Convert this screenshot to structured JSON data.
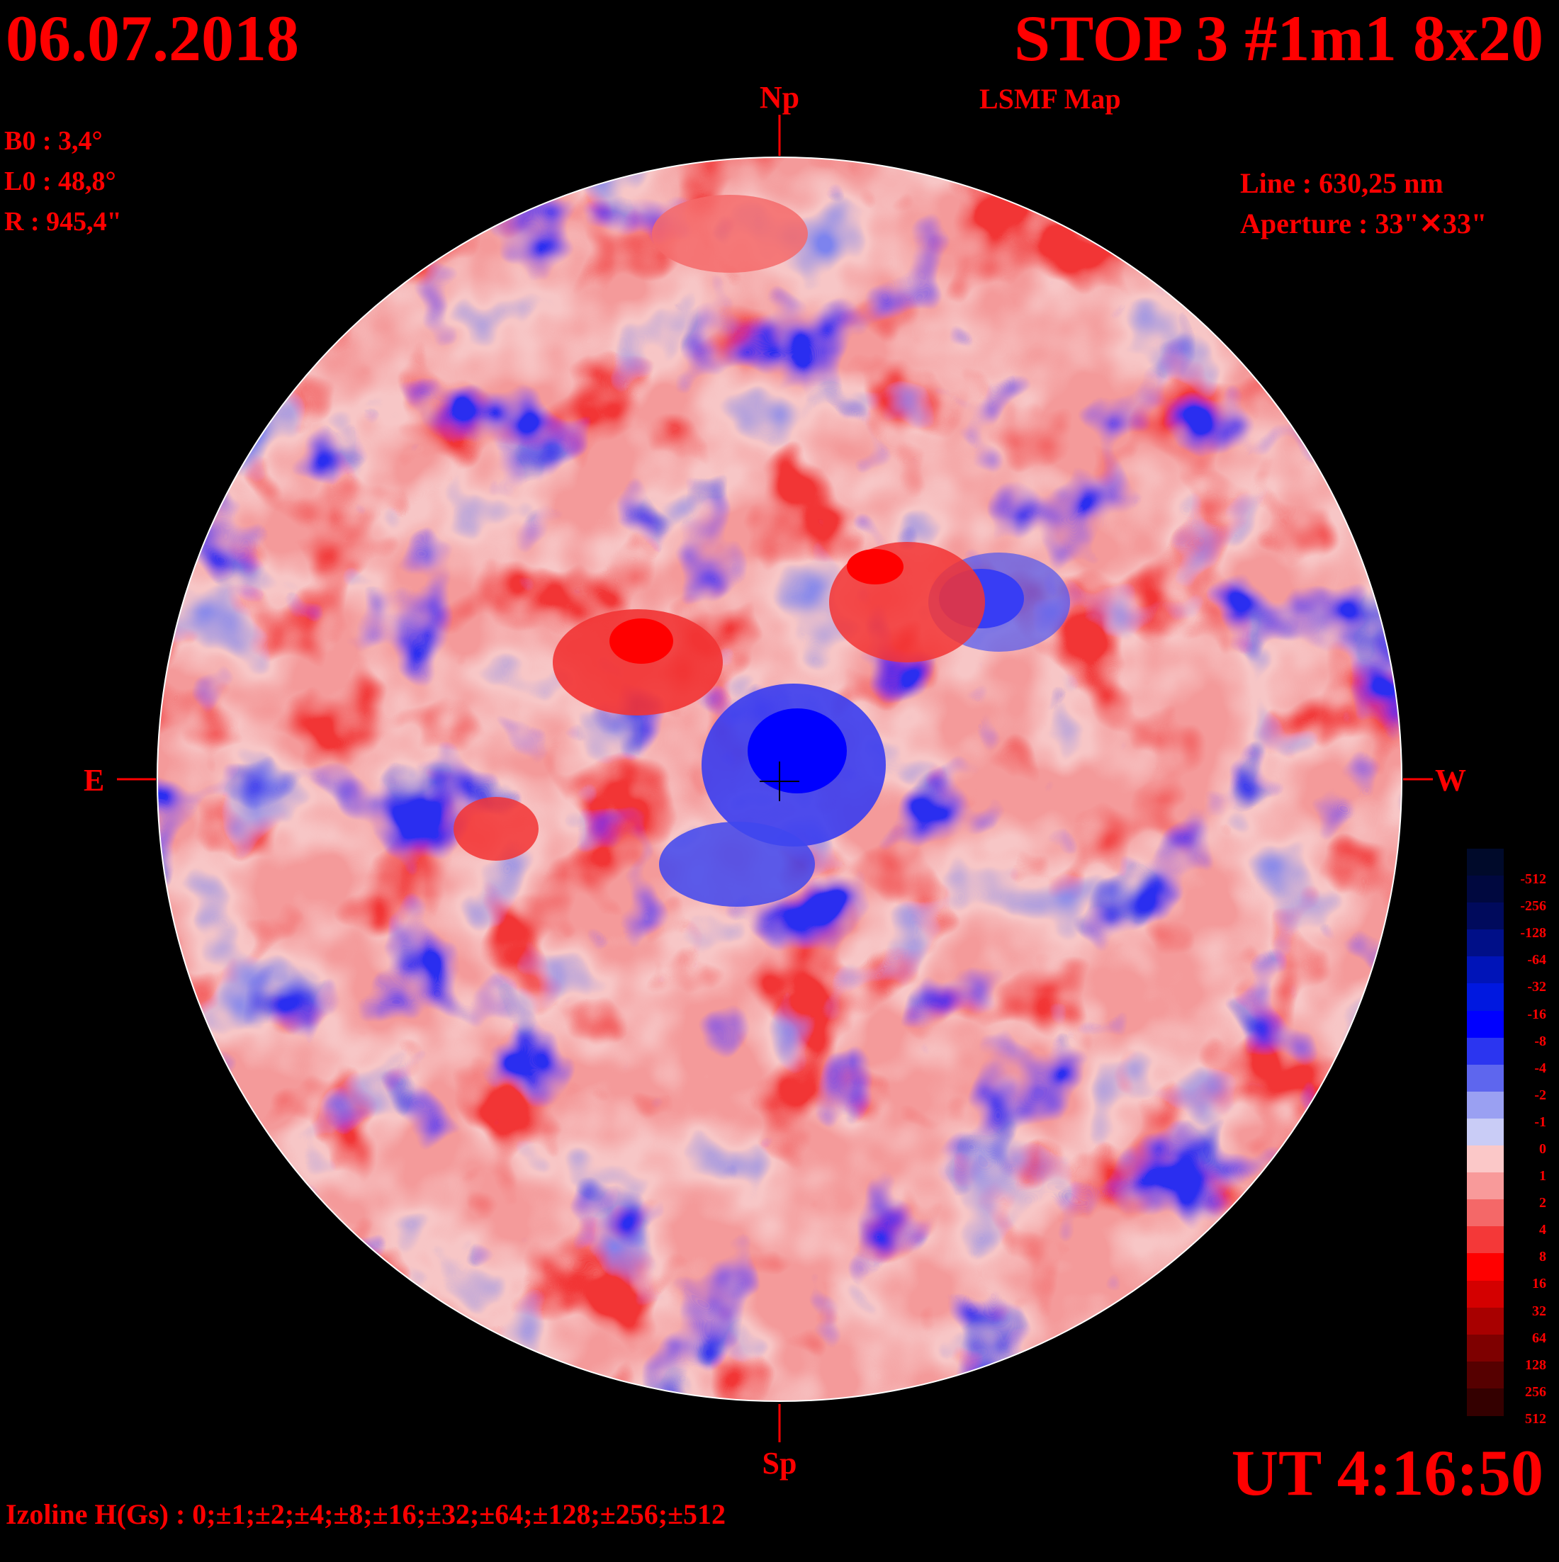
{
  "header": {
    "date": "06.07.2018",
    "title": "STOP 3 #1m1 8x20",
    "subtitle": "LSMF  Map"
  },
  "params": {
    "b0": "B0 : 3,4°",
    "l0": "L0 : 48,8°",
    "radius": "R  : 945,4\""
  },
  "instrument": {
    "line": "Line :  630,25 nm",
    "aperture": "Aperture : 33\"✕33\""
  },
  "directions": {
    "north": "Np",
    "south": "Sp",
    "east": "E",
    "west": "W"
  },
  "time": "UT 4:16:50",
  "isolines": "Izoline H(Gs) : 0;±1;±2;±4;±8;±16;±32;±64;±128;±256;±512",
  "colors": {
    "background": "#000000",
    "text": "#ff0000",
    "zero_line": "#ffffff"
  },
  "scale": {
    "labels": [
      "-512",
      "-256",
      "-128",
      "-64",
      "-32",
      "-16",
      "-8",
      "-4",
      "-2",
      "-1",
      "0",
      "1",
      "2",
      "4",
      "8",
      "16",
      "32",
      "64",
      "128",
      "256",
      "512"
    ],
    "colors": [
      "#000a2a",
      "#00083f",
      "#000a5c",
      "#000f88",
      "#0014b8",
      "#0018e0",
      "#0000ff",
      "#2b35f0",
      "#5e66ee",
      "#9aa0f2",
      "#c9ccf6",
      "#fbc8c8",
      "#f89a9a",
      "#f46868",
      "#f43838",
      "#ff0000",
      "#d40000",
      "#a80000",
      "#7e0000",
      "#560000",
      "#340000"
    ]
  }
}
